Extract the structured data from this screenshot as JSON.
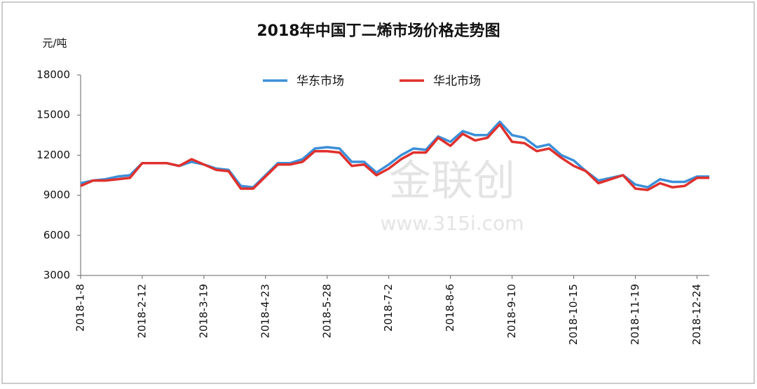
{
  "chart_data": {
    "type": "line",
    "title": "2018年中国丁二烯市场价格走势图",
    "y_label": "元/吨",
    "watermark": [
      "金联创",
      "www.315i.com"
    ],
    "x": [
      "2018-1-8",
      "2018-1-15",
      "2018-1-22",
      "2018-1-29",
      "2018-2-5",
      "2018-2-12",
      "2018-2-19",
      "2018-2-26",
      "2018-3-5",
      "2018-3-12",
      "2018-3-19",
      "2018-3-26",
      "2018-4-2",
      "2018-4-9",
      "2018-4-16",
      "2018-4-23",
      "2018-4-30",
      "2018-5-7",
      "2018-5-14",
      "2018-5-21",
      "2018-5-28",
      "2018-6-4",
      "2018-6-11",
      "2018-6-18",
      "2018-6-25",
      "2018-7-2",
      "2018-7-9",
      "2018-7-16",
      "2018-7-23",
      "2018-7-30",
      "2018-8-6",
      "2018-8-13",
      "2018-8-20",
      "2018-8-27",
      "2018-9-3",
      "2018-9-10",
      "2018-9-17",
      "2018-9-24",
      "2018-10-1",
      "2018-10-8",
      "2018-10-15",
      "2018-10-22",
      "2018-10-29",
      "2018-11-5",
      "2018-11-12",
      "2018-11-19",
      "2018-11-26",
      "2018-12-3",
      "2018-12-10",
      "2018-12-17",
      "2018-12-24",
      "2018-12-31"
    ],
    "series": [
      {
        "name": "华东市场",
        "color": "#3c8fd8",
        "values": [
          9900,
          10100,
          10200,
          10400,
          10500,
          11400,
          11400,
          11400,
          11200,
          11500,
          11300,
          11000,
          10900,
          9700,
          9600,
          10500,
          11400,
          11400,
          11700,
          12500,
          12600,
          12500,
          11500,
          11500,
          10700,
          11300,
          12000,
          12500,
          12400,
          13400,
          13000,
          13800,
          13500,
          13500,
          14500,
          13500,
          13300,
          12600,
          12800,
          12000,
          11600,
          10800,
          10100,
          10300,
          10500,
          9800,
          9600,
          10200,
          10000,
          10000,
          10400,
          10400
        ]
      },
      {
        "name": "华北市场",
        "color": "#e0302c",
        "values": [
          9700,
          10100,
          10100,
          10200,
          10300,
          11400,
          11400,
          11400,
          11200,
          11700,
          11300,
          10900,
          10800,
          9500,
          9500,
          10400,
          11300,
          11300,
          11500,
          12300,
          12300,
          12200,
          11200,
          11300,
          10500,
          11000,
          11700,
          12200,
          12200,
          13300,
          12700,
          13600,
          13100,
          13300,
          14300,
          13000,
          12900,
          12300,
          12500,
          11800,
          11200,
          10800,
          9900,
          10200,
          10500,
          9500,
          9400,
          9900,
          9600,
          9700,
          10300,
          10300
        ]
      }
    ],
    "xlim": [
      "2018-1-8",
      "2018-12-31"
    ],
    "xticks": [
      "2018-1-8",
      "2018-2-12",
      "2018-3-19",
      "2018-4-23",
      "2018-5-28",
      "2018-7-2",
      "2018-8-6",
      "2018-9-10",
      "2018-10-15",
      "2018-11-19",
      "2018-12-24"
    ],
    "ylim": [
      3000,
      18000
    ],
    "yticks": [
      3000,
      6000,
      9000,
      12000,
      15000,
      18000
    ],
    "grid": false,
    "legend": "top"
  }
}
